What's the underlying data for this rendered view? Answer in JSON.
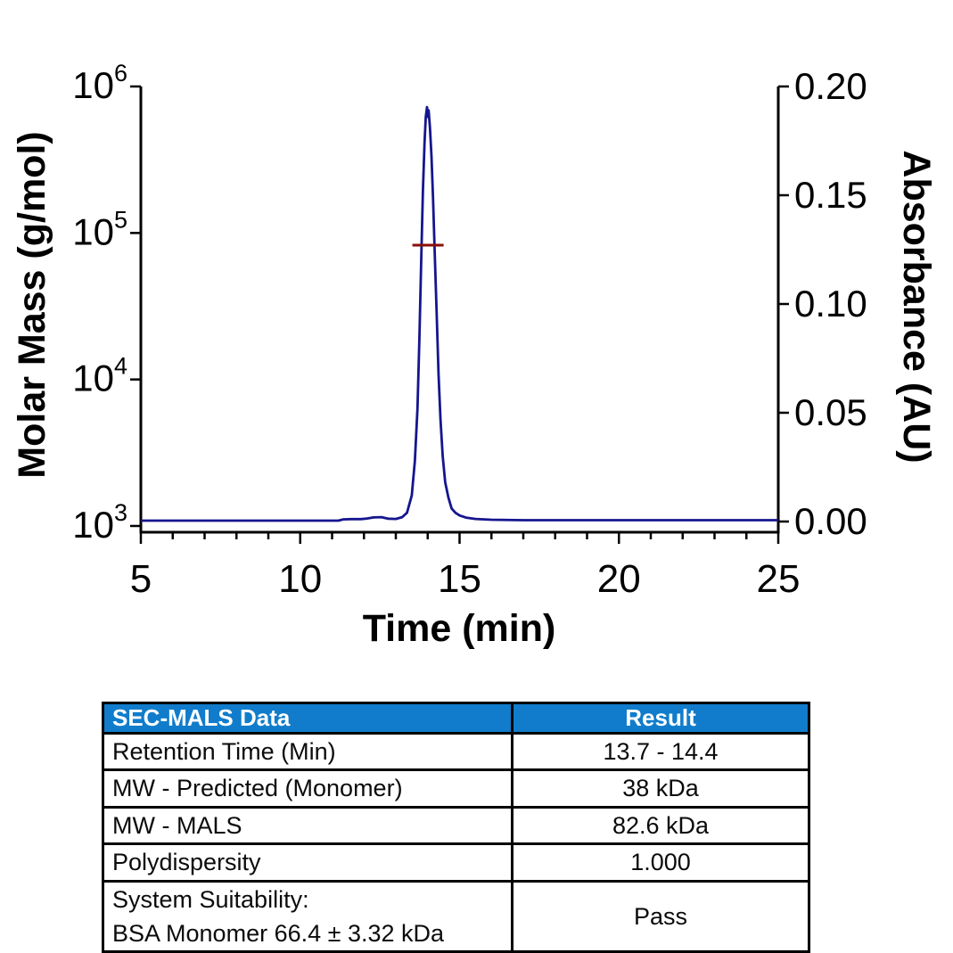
{
  "chart_data": {
    "type": "line",
    "title": "",
    "xlabel": "Time (min)",
    "grid": false,
    "legend": "none",
    "axes": {
      "x": {
        "label": "Time (min)",
        "min": 5,
        "max": 25,
        "major_ticks": [
          5,
          10,
          15,
          20,
          25
        ],
        "minor_step": 1
      },
      "left": {
        "label": "Molar Mass (g/mol)",
        "scale": "log",
        "min": 1000,
        "max": 1000000,
        "tick_exponents": [
          6,
          5,
          4,
          3
        ]
      },
      "right": {
        "label": "Absorbance (AU)",
        "min": 0,
        "max": 0.2,
        "ticks": [
          {
            "value": 0.2,
            "label": "0.20"
          },
          {
            "value": 0.15,
            "label": "0.15"
          },
          {
            "value": 0.1,
            "label": "0.10"
          },
          {
            "value": 0.05,
            "label": "0.05"
          },
          {
            "value": 0.0,
            "label": "0.00"
          }
        ]
      }
    },
    "series": [
      {
        "name": "uv-absorbance-trace",
        "axis": "right",
        "color": "#15158f",
        "width": 2.8,
        "points": [
          [
            5.0,
            0.0004
          ],
          [
            11.2,
            0.0004
          ],
          [
            11.35,
            0.001
          ],
          [
            11.6,
            0.0011
          ],
          [
            11.9,
            0.0011
          ],
          [
            12.1,
            0.0014
          ],
          [
            12.3,
            0.0019
          ],
          [
            12.55,
            0.002
          ],
          [
            12.75,
            0.0013
          ],
          [
            13.0,
            0.0012
          ],
          [
            13.2,
            0.002
          ],
          [
            13.35,
            0.004
          ],
          [
            13.5,
            0.012
          ],
          [
            13.6,
            0.028
          ],
          [
            13.68,
            0.052
          ],
          [
            13.74,
            0.085
          ],
          [
            13.8,
            0.122
          ],
          [
            13.85,
            0.152
          ],
          [
            13.9,
            0.174
          ],
          [
            13.94,
            0.186
          ],
          [
            13.98,
            0.1905
          ],
          [
            14.01,
            0.186
          ],
          [
            14.03,
            0.189
          ],
          [
            14.07,
            0.181
          ],
          [
            14.12,
            0.168
          ],
          [
            14.17,
            0.148
          ],
          [
            14.22,
            0.124
          ],
          [
            14.28,
            0.096
          ],
          [
            14.34,
            0.068
          ],
          [
            14.4,
            0.047
          ],
          [
            14.47,
            0.03
          ],
          [
            14.55,
            0.018
          ],
          [
            14.65,
            0.011
          ],
          [
            14.75,
            0.006
          ],
          [
            14.87,
            0.004
          ],
          [
            15.0,
            0.0028
          ],
          [
            15.2,
            0.0018
          ],
          [
            15.5,
            0.0012
          ],
          [
            16.0,
            0.0008
          ],
          [
            17.0,
            0.0006
          ],
          [
            20.0,
            0.0006
          ],
          [
            25.0,
            0.0006
          ]
        ]
      },
      {
        "name": "mals-molar-mass-trace",
        "axis": "left",
        "color": "#8b0d06",
        "width": 3,
        "points": [
          [
            13.52,
            82600
          ],
          [
            14.5,
            82600
          ]
        ]
      }
    ]
  },
  "table": {
    "header": {
      "col1": "SEC-MALS Data",
      "col2": "Result"
    },
    "header_bg": "#107CCB",
    "rows": [
      {
        "label": "Retention Time (Min)",
        "value": "13.7 - 14.4"
      },
      {
        "label": "MW - Predicted (Monomer)",
        "value": "38 kDa"
      },
      {
        "label": "MW - MALS",
        "value": "82.6 kDa"
      },
      {
        "label": "Polydispersity",
        "value": "1.000"
      },
      {
        "label": "System Suitability:",
        "label2": "BSA Monomer 66.4 ± 3.32 kDa",
        "value": "Pass"
      }
    ]
  }
}
